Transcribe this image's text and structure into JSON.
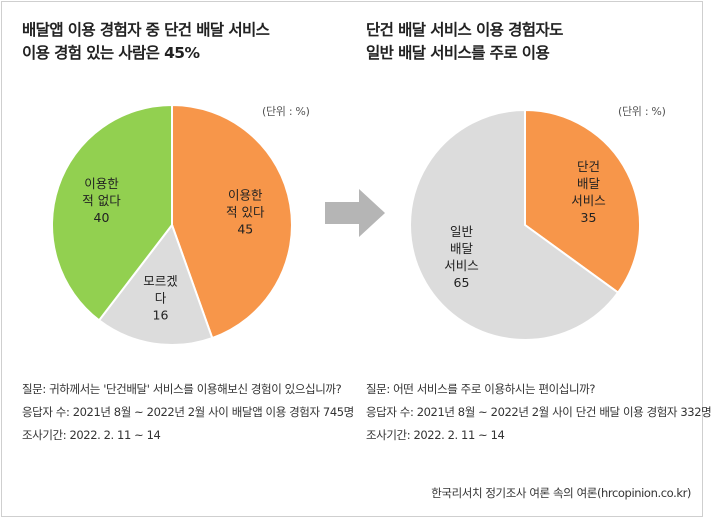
{
  "left": {
    "title_line1": "배달앱 이용 경험자 중 단건 배달 서비스",
    "title_line2": "이용 경험 있는 사람은 45%",
    "unit": "(단위 : %)",
    "notes": {
      "question": "질문:  귀하께서는 '단건배달' 서비스를 이용해보신 경험이 있으십니까?",
      "respondents": "응답자 수: 2021년 8월 ~ 2022년 2월 사이 배달앱  이용 경험자 745명",
      "period": "조사기간: 2022. 2. 11 ~ 14"
    }
  },
  "right": {
    "title_line1": "단건 배달 서비스 이용 경험자도",
    "title_line2": "일반 배달 서비스를 주로 이용",
    "unit": "(단위 : %)",
    "notes": {
      "question": "질문:  어떤 서비스를 주로 이용하시는 편이십니까?",
      "respondents": "응답자 수: 2021년 8월 ~ 2022년 2월 사이 단건 배달 이용 경험자 332명",
      "period": "조사기간: 2022. 2. 11 ~ 14"
    }
  },
  "source": "한국리서치 정기조사 여론 속의 여론(hrcopinion.co.kr)",
  "colors": {
    "orange": "#f7964a",
    "gray": "#dcdcdc",
    "green": "#92d050",
    "arrow": "#b5b5b5"
  },
  "chart_data": [
    {
      "type": "pie",
      "title": "",
      "slices": [
        {
          "label_lines": [
            "이용한",
            "적 있다"
          ],
          "value": 45,
          "color": "#f7964a"
        },
        {
          "label_lines": [
            "모르겠",
            "다"
          ],
          "value": 16,
          "color": "#dcdcdc"
        },
        {
          "label_lines": [
            "이용한",
            "적 없다"
          ],
          "value": 40,
          "color": "#92d050"
        }
      ]
    },
    {
      "type": "pie",
      "title": "",
      "slices": [
        {
          "label_lines": [
            "단건",
            "배달",
            "서비스"
          ],
          "value": 35,
          "color": "#f7964a"
        },
        {
          "label_lines": [
            "일반",
            "배달",
            "서비스"
          ],
          "value": 65,
          "color": "#dcdcdc"
        }
      ]
    }
  ]
}
